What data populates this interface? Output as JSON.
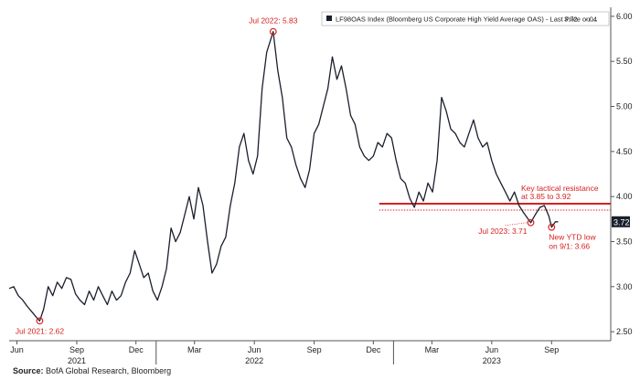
{
  "chart_data": {
    "type": "line",
    "legend": {
      "series_label": "LF98OAS Index (Bloomberg US Corporate High Yield Average OAS) - Last Price on ...",
      "value": "3.72",
      "change": "-.04",
      "placement": "top-right"
    },
    "y_axis": {
      "position": "right",
      "ylim": [
        2.4,
        6.1
      ],
      "ticks": [
        "2.50",
        "3.00",
        "3.50",
        "4.00",
        "4.50",
        "5.00",
        "5.50",
        "6.00"
      ]
    },
    "x_axis": {
      "ticks": [
        {
          "label": "Jun",
          "date": "2021-06-01"
        },
        {
          "label": "Sep",
          "date": "2021-09-01"
        },
        {
          "label": "Dec",
          "date": "2021-12-01"
        },
        {
          "label": "Mar",
          "date": "2022-03-01"
        },
        {
          "label": "Jun",
          "date": "2022-06-01"
        },
        {
          "label": "Sep",
          "date": "2022-09-01"
        },
        {
          "label": "Dec",
          "date": "2022-12-01"
        },
        {
          "label": "Mar",
          "date": "2023-03-01"
        },
        {
          "label": "Jun",
          "date": "2023-06-01"
        },
        {
          "label": "Sep",
          "date": "2023-09-01"
        }
      ],
      "years": [
        {
          "label": "2021",
          "date": "2021-09-01"
        },
        {
          "label": "2022",
          "date": "2022-06-01"
        },
        {
          "label": "2023",
          "date": "2023-06-01"
        }
      ],
      "range": [
        "2021-05-20",
        "2023-12-01"
      ]
    },
    "series": [
      {
        "points": [
          [
            "2021-05-20",
            2.98
          ],
          [
            "2021-05-27",
            3.0
          ],
          [
            "2021-06-03",
            2.9
          ],
          [
            "2021-06-10",
            2.85
          ],
          [
            "2021-06-17",
            2.78
          ],
          [
            "2021-06-24",
            2.72
          ],
          [
            "2021-07-01",
            2.66
          ],
          [
            "2021-07-06",
            2.62
          ],
          [
            "2021-07-12",
            2.75
          ],
          [
            "2021-07-19",
            3.0
          ],
          [
            "2021-07-26",
            2.9
          ],
          [
            "2021-08-02",
            3.05
          ],
          [
            "2021-08-09",
            2.98
          ],
          [
            "2021-08-16",
            3.1
          ],
          [
            "2021-08-23",
            3.08
          ],
          [
            "2021-08-30",
            2.92
          ],
          [
            "2021-09-06",
            2.85
          ],
          [
            "2021-09-13",
            2.8
          ],
          [
            "2021-09-20",
            2.95
          ],
          [
            "2021-09-27",
            2.85
          ],
          [
            "2021-10-04",
            3.0
          ],
          [
            "2021-10-11",
            2.9
          ],
          [
            "2021-10-18",
            2.8
          ],
          [
            "2021-10-25",
            2.95
          ],
          [
            "2021-11-01",
            2.85
          ],
          [
            "2021-11-08",
            2.9
          ],
          [
            "2021-11-15",
            3.05
          ],
          [
            "2021-11-22",
            3.15
          ],
          [
            "2021-11-29",
            3.4
          ],
          [
            "2021-12-06",
            3.25
          ],
          [
            "2021-12-13",
            3.1
          ],
          [
            "2021-12-20",
            3.15
          ],
          [
            "2021-12-27",
            2.95
          ],
          [
            "2022-01-03",
            2.85
          ],
          [
            "2022-01-10",
            3.0
          ],
          [
            "2022-01-17",
            3.2
          ],
          [
            "2022-01-24",
            3.65
          ],
          [
            "2022-01-31",
            3.5
          ],
          [
            "2022-02-07",
            3.6
          ],
          [
            "2022-02-14",
            3.8
          ],
          [
            "2022-02-21",
            4.0
          ],
          [
            "2022-02-28",
            3.75
          ],
          [
            "2022-03-07",
            4.1
          ],
          [
            "2022-03-14",
            3.9
          ],
          [
            "2022-03-21",
            3.5
          ],
          [
            "2022-03-28",
            3.15
          ],
          [
            "2022-04-04",
            3.25
          ],
          [
            "2022-04-11",
            3.45
          ],
          [
            "2022-04-18",
            3.55
          ],
          [
            "2022-04-25",
            3.9
          ],
          [
            "2022-05-02",
            4.15
          ],
          [
            "2022-05-09",
            4.55
          ],
          [
            "2022-05-16",
            4.7
          ],
          [
            "2022-05-23",
            4.4
          ],
          [
            "2022-05-30",
            4.25
          ],
          [
            "2022-06-06",
            4.45
          ],
          [
            "2022-06-13",
            5.2
          ],
          [
            "2022-06-20",
            5.6
          ],
          [
            "2022-06-30",
            5.83
          ],
          [
            "2022-07-07",
            5.4
          ],
          [
            "2022-07-14",
            5.1
          ],
          [
            "2022-07-21",
            4.65
          ],
          [
            "2022-07-28",
            4.55
          ],
          [
            "2022-08-04",
            4.35
          ],
          [
            "2022-08-11",
            4.2
          ],
          [
            "2022-08-18",
            4.1
          ],
          [
            "2022-08-25",
            4.3
          ],
          [
            "2022-09-01",
            4.7
          ],
          [
            "2022-09-08",
            4.8
          ],
          [
            "2022-09-15",
            5.0
          ],
          [
            "2022-09-22",
            5.2
          ],
          [
            "2022-09-29",
            5.55
          ],
          [
            "2022-10-06",
            5.3
          ],
          [
            "2022-10-13",
            5.45
          ],
          [
            "2022-10-20",
            5.2
          ],
          [
            "2022-10-27",
            4.9
          ],
          [
            "2022-11-03",
            4.8
          ],
          [
            "2022-11-10",
            4.55
          ],
          [
            "2022-11-17",
            4.45
          ],
          [
            "2022-11-24",
            4.4
          ],
          [
            "2022-12-01",
            4.45
          ],
          [
            "2022-12-08",
            4.6
          ],
          [
            "2022-12-15",
            4.55
          ],
          [
            "2022-12-22",
            4.7
          ],
          [
            "2022-12-29",
            4.65
          ],
          [
            "2023-01-05",
            4.4
          ],
          [
            "2023-01-12",
            4.2
          ],
          [
            "2023-01-19",
            4.15
          ],
          [
            "2023-01-26",
            3.98
          ],
          [
            "2023-02-02",
            3.88
          ],
          [
            "2023-02-09",
            4.05
          ],
          [
            "2023-02-16",
            3.95
          ],
          [
            "2023-02-23",
            4.15
          ],
          [
            "2023-03-02",
            4.05
          ],
          [
            "2023-03-09",
            4.4
          ],
          [
            "2023-03-16",
            5.1
          ],
          [
            "2023-03-23",
            4.95
          ],
          [
            "2023-03-30",
            4.75
          ],
          [
            "2023-04-06",
            4.7
          ],
          [
            "2023-04-13",
            4.6
          ],
          [
            "2023-04-20",
            4.55
          ],
          [
            "2023-04-27",
            4.7
          ],
          [
            "2023-05-04",
            4.85
          ],
          [
            "2023-05-11",
            4.65
          ],
          [
            "2023-05-18",
            4.55
          ],
          [
            "2023-05-25",
            4.6
          ],
          [
            "2023-06-01",
            4.4
          ],
          [
            "2023-06-08",
            4.25
          ],
          [
            "2023-06-15",
            4.15
          ],
          [
            "2023-06-22",
            4.05
          ],
          [
            "2023-06-29",
            3.95
          ],
          [
            "2023-07-06",
            4.05
          ],
          [
            "2023-07-13",
            3.9
          ],
          [
            "2023-07-20",
            3.82
          ],
          [
            "2023-07-31",
            3.71
          ],
          [
            "2023-08-07",
            3.8
          ],
          [
            "2023-08-14",
            3.88
          ],
          [
            "2023-08-21",
            3.9
          ],
          [
            "2023-08-28",
            3.78
          ],
          [
            "2023-09-01",
            3.66
          ],
          [
            "2023-09-07",
            3.72
          ],
          [
            "2023-09-11",
            3.72
          ]
        ]
      }
    ],
    "annotations": {
      "peak": {
        "label": "Jul 2022: 5.83",
        "date": "2022-06-30",
        "value": 5.83
      },
      "low_2021": {
        "label": "Jul 2021: 2.62",
        "date": "2021-07-06",
        "value": 2.62
      },
      "jul_2023": {
        "label": "Jul 2023: 3.71",
        "date": "2023-07-31",
        "value": 3.71
      },
      "ytd_low": {
        "line1": "New YTD low",
        "line2": "on 9/1: 3.66",
        "date": "2023-09-01",
        "value": 3.66
      },
      "resistance": {
        "line1": "Key tactical resistance",
        "line2": "at 3.85 to 3.92",
        "lower": 3.85,
        "upper": 3.92,
        "start": "2022-12-10"
      }
    },
    "last_price_label": "3.72",
    "last_price_value": 3.72,
    "grid": false,
    "line_color": "#1a1f2c",
    "annotation_color": "#d62020"
  },
  "source": {
    "label": "Source:",
    "text": "BofA Global Research, Bloomberg"
  }
}
